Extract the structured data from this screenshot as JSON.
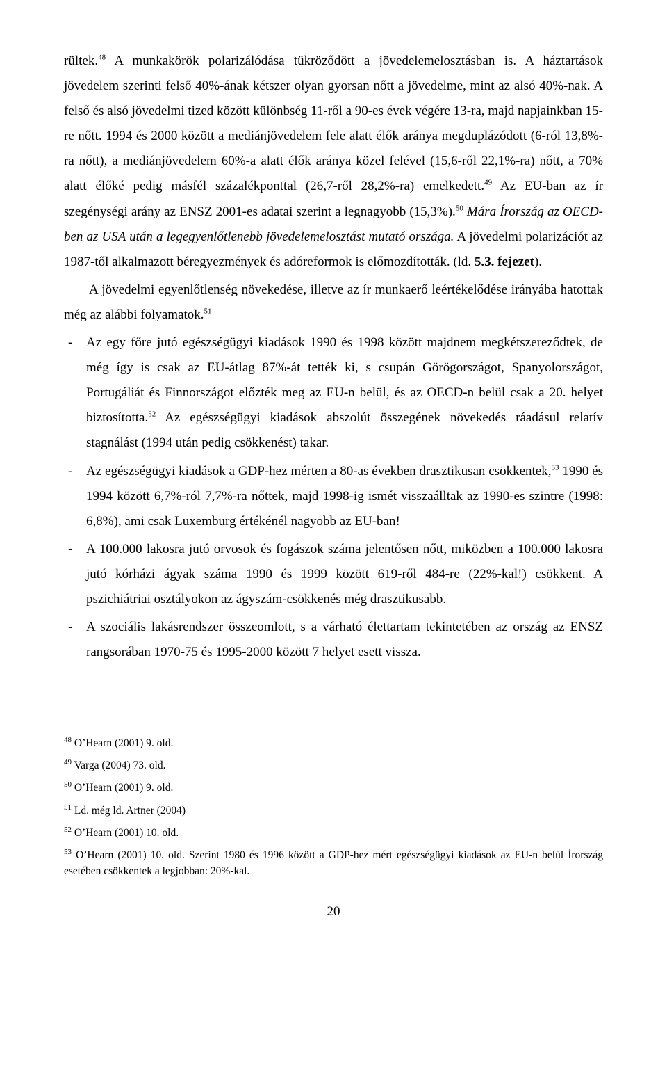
{
  "body": {
    "p1_a": "rültek.",
    "p1_sup1": "48",
    "p1_b": " A munkakörök polarizálódása tükröződött a jövedelemelosztásban is. A háztartások jövedelem szerinti felső 40%-ának kétszer olyan gyorsan nőtt a jövedelme, mint az alsó 40%-nak. A felső és alsó jövedelmi tized között különbség 11-ről a 90-es évek végére 13-ra, majd napjainkban 15-re nőtt. 1994 és 2000 között a mediánjövedelem fele alatt élők aránya megduplázódott (6-ról 13,8%-ra nőtt), a mediánjövedelem 60%-a alatt élők aránya közel felével (15,6-ről 22,1%-ra) nőtt, a 70% alatt élőké pedig másfél százalékponttal (26,7-ről 28,2%-ra) emelkedett.",
    "p1_sup2": "49",
    "p1_c": " Az EU-ban az ír szegénységi arány az ENSZ 2001-es adatai szerint a legnagyobb (15,3%).",
    "p1_sup3": "50",
    "p1_d_italic": " Mára Írország az OECD-ben az USA után a legegyenlőtlenebb jövedelemelosztást mutató országa.",
    "p1_e": " A jövedelmi polarizációt az 1987-től alkalmazott béregyezmények és adóreformok is előmozdították. (ld. ",
    "p1_f_bold": "5.3. fejezet",
    "p1_g": ").",
    "p2_a": "A jövedelmi egyenlőtlenség növekedése, illetve az ír munkaerő leértékelődése irányába hatottak még az alábbi folyamatok.",
    "p2_sup": "51",
    "li1_a": "Az egy főre jutó egészségügyi kiadások 1990 és 1998 között majdnem megkétszereződtek, de még így is csak az EU-átlag 87%-át tették ki, s csupán Görögországot, Spanyolországot, Portugáliát és Finnországot előzték meg az EU-n belül, és az OECD-n belül csak a 20. helyet biztosította.",
    "li1_sup": "52",
    "li1_b": " Az egészségügyi kiadások abszolút összegének növekedés ráadásul relatív stagnálást (1994 után pedig csökkenést) takar.",
    "li2_a": "Az egészségügyi kiadások a GDP-hez mérten a 80-as években drasztikusan csökkentek,",
    "li2_sup": "53",
    "li2_b": " 1990 és 1994 között 6,7%-ról 7,7%-ra nőttek, majd 1998-ig ismét visszaálltak az 1990-es szintre (1998: 6,8%), ami csak Luxemburg értékénél nagyobb az EU-ban!",
    "li3": "A 100.000 lakosra jutó orvosok és fogászok száma jelentősen nőtt, miközben a 100.000 lakosra jutó kórházi ágyak száma 1990 és 1999 között 619-ről 484-re (22%-kal!) csökkent. A pszichiátriai osztályokon az ágyszám-csökkenés még drasztikusabb.",
    "li4": "A szociális lakásrendszer összeomlott, s a várható élettartam tekintetében az ország az ENSZ rangsorában 1970-75 és 1995-2000 között 7 helyet esett vissza."
  },
  "footnotes": {
    "f48": "O’Hearn (2001) 9. old.",
    "f49": "Varga (2004) 73. old.",
    "f50": "O’Hearn (2001) 9. old.",
    "f51": "Ld. még ld. Artner (2004)",
    "f52": "O’Hearn (2001) 10. old.",
    "f53": "O’Hearn (2001) 10. old. Szerint 1980 és 1996 között a GDP-hez mért egészségügyi kiadások az EU-n belül Írország esetében csökkentek a legjobban: 20%-kal."
  },
  "fn_nums": {
    "n48": "48",
    "n49": "49",
    "n50": "50",
    "n51": "51",
    "n52": "52",
    "n53": "53"
  },
  "page_number": "20"
}
